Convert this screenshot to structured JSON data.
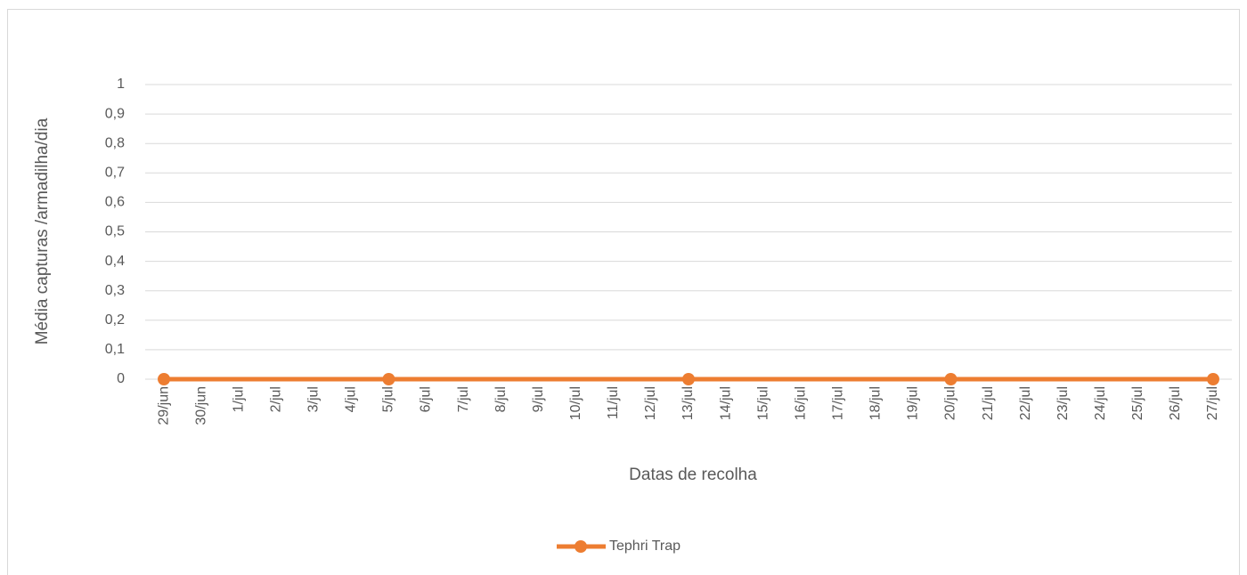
{
  "chart_data": {
    "type": "line",
    "x_label": "Datas de recolha",
    "y_label": "Média capturas /armadilha/dia",
    "categories": [
      "29/jun",
      "30/jun",
      "1/jul",
      "2/jul",
      "3/jul",
      "4/jul",
      "5/jul",
      "6/jul",
      "7/jul",
      "8/jul",
      "9/jul",
      "10/jul",
      "11/jul",
      "12/jul",
      "13/jul",
      "14/jul",
      "15/jul",
      "16/jul",
      "17/jul",
      "18/jul",
      "19/jul",
      "20/jul",
      "21/jul",
      "22/jul",
      "23/jul",
      "24/jul",
      "25/jul",
      "26/jul",
      "27/jul"
    ],
    "series": [
      {
        "name": "Tephri Trap",
        "color": "#ed7d31",
        "x": [
          "29/jun",
          "5/jul",
          "13/jul",
          "20/jul",
          "27/jul"
        ],
        "values": [
          0,
          0,
          0,
          0,
          0
        ]
      }
    ],
    "ylim": [
      0,
      1
    ],
    "yticks": [
      0,
      {
        "value": 0.1,
        "label": "0,1"
      },
      {
        "value": 0.2,
        "label": "0,2"
      },
      {
        "value": 0.3,
        "label": "0,3"
      },
      {
        "value": 0.4,
        "label": "0,4"
      },
      {
        "value": 0.5,
        "label": "0,5"
      },
      {
        "value": 0.6,
        "label": "0,6"
      },
      {
        "value": 0.7,
        "label": "0,7"
      },
      {
        "value": 0.8,
        "label": "0,8"
      },
      {
        "value": 0.9,
        "label": "0,9"
      },
      1
    ],
    "grid": true,
    "legend": "bottom"
  }
}
